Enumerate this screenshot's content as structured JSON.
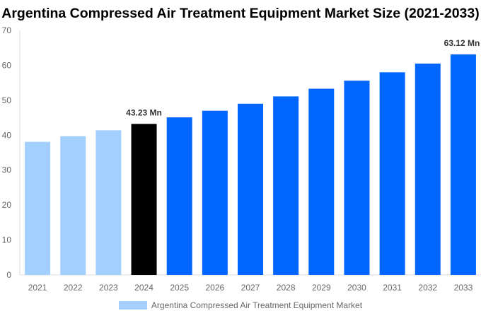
{
  "chart_data": {
    "type": "bar",
    "title": "Argentina Compressed Air Treatment Equipment Market Size (2021-2033)",
    "categories": [
      "2021",
      "2022",
      "2023",
      "2024",
      "2025",
      "2026",
      "2027",
      "2028",
      "2029",
      "2030",
      "2031",
      "2032",
      "2033"
    ],
    "series": [
      {
        "name": "Argentina Compressed Air Treatment Equipment Market",
        "values": [
          38.1,
          39.7,
          41.4,
          43.23,
          45.1,
          47.0,
          49.0,
          51.1,
          53.3,
          55.6,
          58.0,
          60.5,
          63.12
        ]
      }
    ],
    "bar_colors": [
      "#a3cfff",
      "#a3cfff",
      "#a3cfff",
      "#000000",
      "#0066ff",
      "#0066ff",
      "#0066ff",
      "#0066ff",
      "#0066ff",
      "#0066ff",
      "#0066ff",
      "#0066ff",
      "#0066ff"
    ],
    "data_labels": {
      "3": "43.23 Mn",
      "12": "63.12 Mn"
    },
    "ylim": [
      0,
      70
    ],
    "yticks": [
      0,
      10,
      20,
      30,
      40,
      50,
      60,
      70
    ],
    "grid": false,
    "legend_position": "bottom",
    "legend_color": "#a3cfff"
  }
}
